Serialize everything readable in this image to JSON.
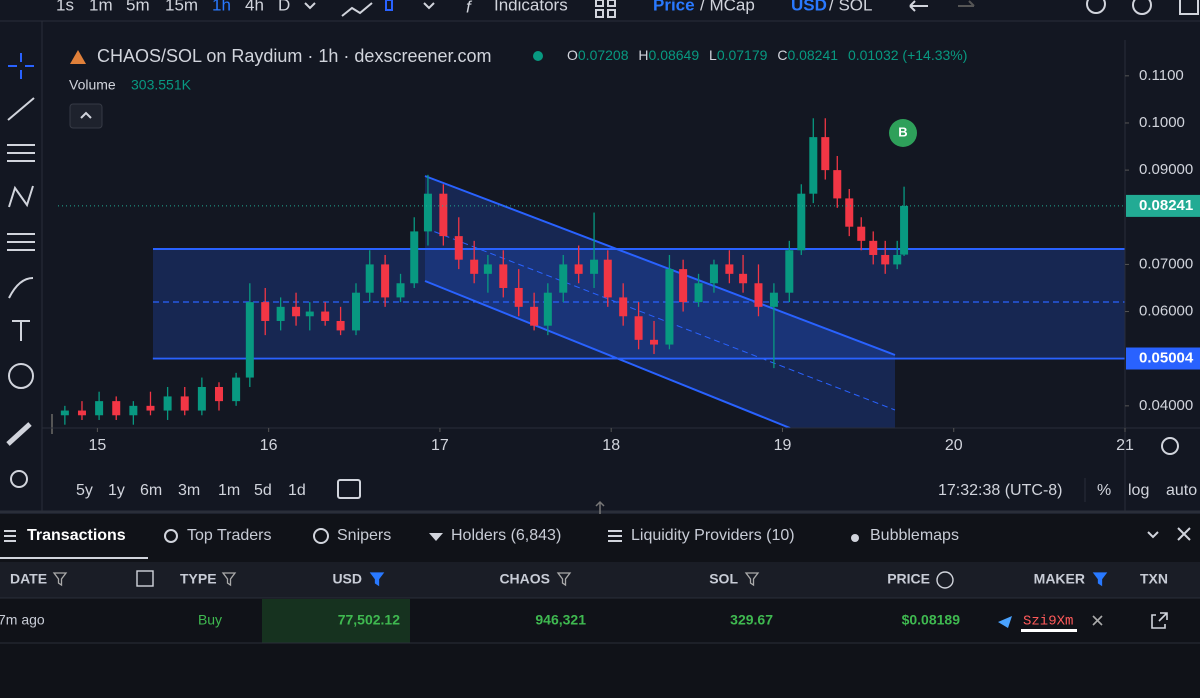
{
  "toolbar": {
    "intervals": [
      "1s",
      "1m",
      "5m",
      "15m",
      "1h",
      "4h",
      "D"
    ],
    "active_interval": 4,
    "indicators": "Indicators",
    "price": "Price",
    "mcap": "/ MCap",
    "usd": "USD",
    "sol": "/ SOL"
  },
  "legend": {
    "title": "CHAOS/SOL on Raydium · 1h · dexscreener.com",
    "o_label": "O",
    "open": "0.07208",
    "h_label": "H",
    "high": "0.08649",
    "l_label": "L",
    "low": "0.07179",
    "c_label": "C",
    "close": "0.08241",
    "change": "0.01032 (+14.33%)",
    "volume_label": "Volume",
    "volume": "303.551K"
  },
  "marker": "B",
  "chart_data": {
    "type": "candlestick",
    "x": [
      14.81,
      14.91,
      15.01,
      15.11,
      15.21,
      15.31,
      15.41,
      15.51,
      15.61,
      15.71,
      15.81,
      15.89,
      15.98,
      16.07,
      16.16,
      16.24,
      16.33,
      16.42,
      16.51,
      16.59,
      16.68,
      16.77,
      16.85,
      16.93,
      17.02,
      17.11,
      17.2,
      17.28,
      17.37,
      17.46,
      17.55,
      17.63,
      17.72,
      17.81,
      17.9,
      17.98,
      18.07,
      18.16,
      18.25,
      18.34,
      18.42,
      18.51,
      18.6,
      18.69,
      18.77,
      18.86,
      18.95,
      19.04,
      19.11,
      19.18,
      19.25,
      19.32,
      19.39,
      19.46,
      19.53,
      19.6,
      19.67,
      19.71
    ],
    "open": [
      0.038,
      0.039,
      0.038,
      0.041,
      0.038,
      0.04,
      0.039,
      0.042,
      0.039,
      0.044,
      0.041,
      0.046,
      0.062,
      0.058,
      0.061,
      0.059,
      0.06,
      0.058,
      0.056,
      0.064,
      0.07,
      0.063,
      0.066,
      0.077,
      0.085,
      0.076,
      0.071,
      0.068,
      0.07,
      0.065,
      0.061,
      0.057,
      0.064,
      0.07,
      0.068,
      0.071,
      0.063,
      0.059,
      0.054,
      0.053,
      0.069,
      0.062,
      0.066,
      0.07,
      0.068,
      0.066,
      0.061,
      0.064,
      0.073,
      0.085,
      0.097,
      0.09,
      0.084,
      0.078,
      0.075,
      0.072,
      0.07,
      0.07208
    ],
    "high": [
      0.04,
      0.041,
      0.043,
      0.042,
      0.041,
      0.043,
      0.044,
      0.044,
      0.046,
      0.045,
      0.047,
      0.066,
      0.065,
      0.063,
      0.064,
      0.062,
      0.062,
      0.061,
      0.066,
      0.073,
      0.072,
      0.068,
      0.08,
      0.089,
      0.087,
      0.08,
      0.075,
      0.072,
      0.073,
      0.069,
      0.064,
      0.066,
      0.072,
      0.074,
      0.081,
      0.073,
      0.066,
      0.062,
      0.058,
      0.072,
      0.071,
      0.068,
      0.071,
      0.073,
      0.072,
      0.07,
      0.066,
      0.075,
      0.087,
      0.101,
      0.101,
      0.093,
      0.086,
      0.08,
      0.077,
      0.075,
      0.075,
      0.08649
    ],
    "low": [
      0.036,
      0.037,
      0.037,
      0.037,
      0.036,
      0.038,
      0.037,
      0.038,
      0.038,
      0.039,
      0.04,
      0.044,
      0.055,
      0.056,
      0.057,
      0.056,
      0.057,
      0.055,
      0.055,
      0.062,
      0.061,
      0.062,
      0.065,
      0.074,
      0.074,
      0.069,
      0.066,
      0.064,
      0.063,
      0.059,
      0.056,
      0.055,
      0.062,
      0.066,
      0.065,
      0.061,
      0.057,
      0.052,
      0.051,
      0.052,
      0.06,
      0.061,
      0.064,
      0.066,
      0.064,
      0.059,
      0.048,
      0.062,
      0.072,
      0.083,
      0.088,
      0.082,
      0.076,
      0.073,
      0.07,
      0.068,
      0.069,
      0.07179
    ],
    "close": [
      0.039,
      0.038,
      0.041,
      0.038,
      0.04,
      0.039,
      0.042,
      0.039,
      0.044,
      0.041,
      0.046,
      0.062,
      0.058,
      0.061,
      0.059,
      0.06,
      0.058,
      0.056,
      0.064,
      0.07,
      0.063,
      0.066,
      0.077,
      0.085,
      0.076,
      0.071,
      0.068,
      0.07,
      0.065,
      0.061,
      0.057,
      0.064,
      0.07,
      0.068,
      0.071,
      0.063,
      0.059,
      0.054,
      0.053,
      0.069,
      0.062,
      0.066,
      0.07,
      0.068,
      0.066,
      0.061,
      0.064,
      0.073,
      0.085,
      0.097,
      0.09,
      0.084,
      0.078,
      0.075,
      0.072,
      0.07,
      0.072,
      0.08241
    ],
    "up_color": "#089981",
    "down_color": "#f23645",
    "xlim": [
      14.77,
      21.0
    ],
    "xticks": [
      15,
      16,
      17,
      18,
      19,
      20,
      21
    ],
    "ylim": [
      0.0353,
      0.1176
    ],
    "yticks": [
      {
        "value": 0.04,
        "label": "0.04000"
      },
      {
        "value": 0.06,
        "label": "0.06000"
      },
      {
        "value": 0.07,
        "label": "0.07000"
      },
      {
        "value": 0.09,
        "label": "0.09000"
      },
      {
        "value": 0.1,
        "label": "0.1000"
      },
      {
        "value": 0.11,
        "label": "0.1100"
      }
    ],
    "grid": false,
    "price_line": {
      "value": 0.08241,
      "label": "0.08241",
      "color": "#22ab94"
    },
    "levels": [
      {
        "value": 0.05004,
        "label": "0.05004",
        "color": "#2962ff"
      }
    ]
  },
  "ranges": [
    "5y",
    "1y",
    "6m",
    "3m",
    "1m",
    "5d",
    "1d"
  ],
  "clock": "17:32:38 (UTC-8)",
  "scale_options": [
    "%",
    "log",
    "auto"
  ],
  "tabs": [
    "Transactions",
    "Top Traders",
    "Snipers",
    "Holders (6,843)",
    "Liquidity Providers (10)",
    "Bubblemaps"
  ],
  "table": {
    "headers": [
      "DATE",
      "TYPE",
      "USD",
      "CHAOS",
      "SOL",
      "PRICE",
      "MAKER",
      "TXN"
    ],
    "rows": [
      [
        "7m ago",
        "Buy",
        "77,502.12",
        "946,321",
        "329.67",
        "$0.08189",
        "Szi9Xm"
      ]
    ]
  }
}
